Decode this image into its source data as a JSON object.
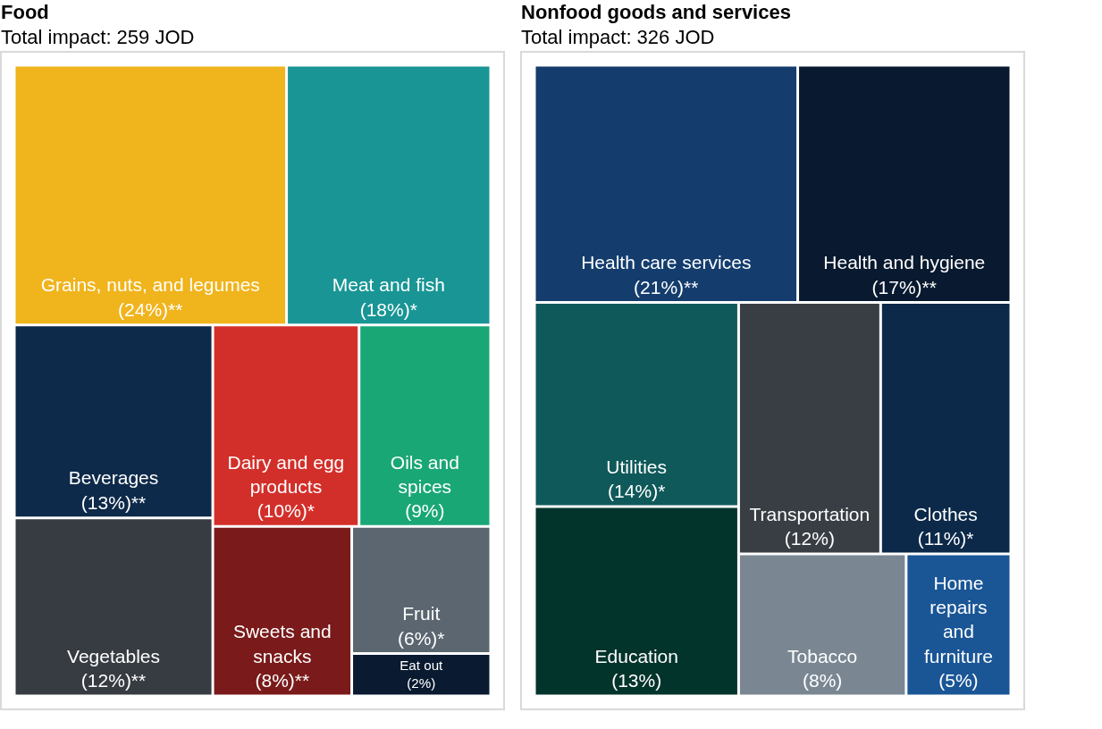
{
  "chart_data": [
    {
      "type": "other",
      "title": "Food",
      "subtitle": "Total impact: 259 JOD",
      "categories": [
        "Grains, nuts, and legumes",
        "Meat and fish",
        "Beverages",
        "Vegetables",
        "Dairy and egg products",
        "Oils and spices",
        "Sweets and snacks",
        "Fruit",
        "Eat out"
      ],
      "values": [
        24,
        18,
        13,
        12,
        10,
        9,
        8,
        6,
        2
      ],
      "value_labels": [
        "(24%)**",
        "(18%)*",
        "(13%)**",
        "(12%)**",
        "(10%)*",
        "(9%)",
        "(8%)**",
        "(6%)*",
        "(2%)"
      ],
      "colors": [
        "#f0b41c",
        "#199595",
        "#0e2a4a",
        "#373c42",
        "#d32f2a",
        "#19a776",
        "#7a1a1a",
        "#5b6670",
        "#0a1a30"
      ]
    },
    {
      "type": "other",
      "title": "Nonfood goods and services",
      "subtitle": "Total impact: 326 JOD",
      "categories": [
        "Health care services",
        "Health and hygiene",
        "Utilities",
        "Education",
        "Transportation",
        "Clothes",
        "Tobacco",
        "Home repairs and furniture"
      ],
      "values": [
        21,
        17,
        14,
        13,
        12,
        11,
        8,
        5
      ],
      "value_labels": [
        "(21%)**",
        "(17%)**",
        "(14%)*",
        "(13%)",
        "(12%)",
        "(11%)*",
        "(8%)",
        "(5%)"
      ],
      "colors": [
        "#143d6e",
        "#091a30",
        "#10595a",
        "#03342c",
        "#393e45",
        "#0c294a",
        "#7a8793",
        "#1a5696"
      ]
    }
  ]
}
